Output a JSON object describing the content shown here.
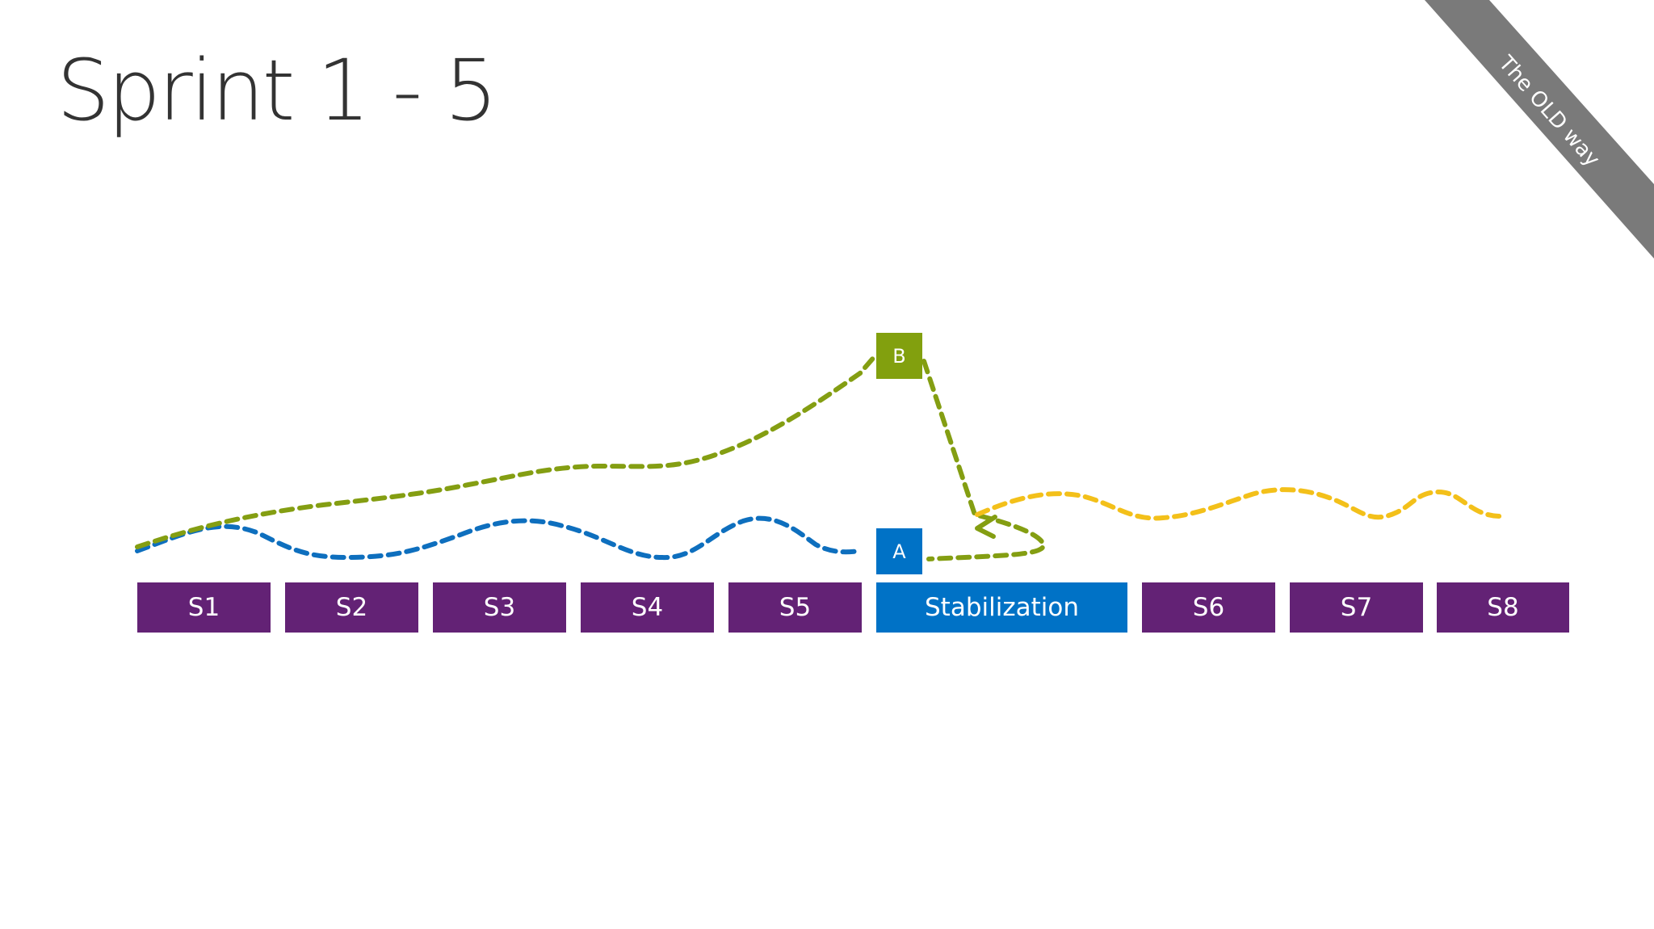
{
  "title": "Sprint 1 - 5",
  "corner_label": "The OLD way",
  "colors": {
    "sprint": "#632275",
    "stabilization": "#0072c6",
    "marker_a": "#0072c6",
    "marker_b": "#82a00e",
    "line_blue": "#0e6fbe",
    "line_green": "#849e12",
    "line_yellow": "#f3c01a",
    "corner_band": "#7a7a7a",
    "title_text": "#333333"
  },
  "sprints": [
    {
      "label": "S1",
      "kind": "sprint"
    },
    {
      "label": "S2",
      "kind": "sprint"
    },
    {
      "label": "S3",
      "kind": "sprint"
    },
    {
      "label": "S4",
      "kind": "sprint"
    },
    {
      "label": "S5",
      "kind": "sprint"
    },
    {
      "label": "Stabilization",
      "kind": "stabilization"
    },
    {
      "label": "S6",
      "kind": "sprint"
    },
    {
      "label": "S7",
      "kind": "sprint"
    },
    {
      "label": "S8",
      "kind": "sprint"
    }
  ],
  "markers": {
    "a": "A",
    "b": "B"
  }
}
